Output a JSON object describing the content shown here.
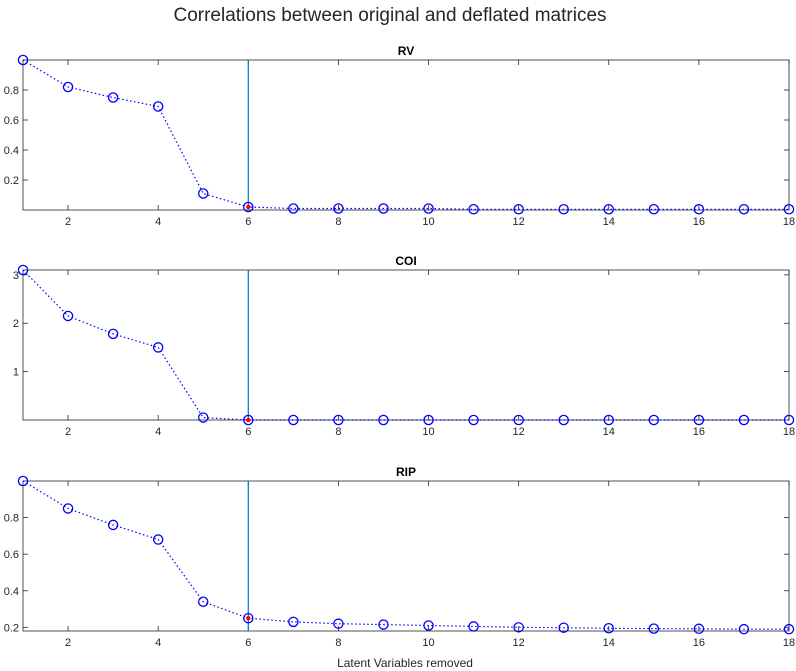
{
  "figure": {
    "title": "Correlations between original and deflated matrices",
    "xlabel": "Latent Variables removed"
  },
  "colors": {
    "marker": "#0000ff",
    "vline": "#0072bd",
    "highlight": "#ff0000",
    "axes": "#262626"
  },
  "chart_data": [
    {
      "type": "line",
      "title": "RV",
      "x": [
        1,
        2,
        3,
        4,
        5,
        6,
        7,
        8,
        9,
        10,
        11,
        12,
        13,
        14,
        15,
        16,
        17,
        18
      ],
      "series": [
        {
          "values": [
            1.0,
            0.82,
            0.75,
            0.69,
            0.11,
            0.02,
            0.01,
            0.01,
            0.01,
            0.01,
            0.005,
            0.005,
            0.005,
            0.005,
            0.005,
            0.005,
            0.005,
            0.005
          ]
        }
      ],
      "xlim": [
        1,
        18
      ],
      "ylim": [
        0,
        1.0
      ],
      "xticks": [
        2,
        4,
        6,
        8,
        10,
        12,
        14,
        16,
        18
      ],
      "yticks": [
        0.2,
        0.4,
        0.6,
        0.8
      ],
      "vline_x": 6,
      "highlight_x": 6,
      "line_style": "dotted",
      "marker": "circle"
    },
    {
      "type": "line",
      "title": "COI",
      "x": [
        1,
        2,
        3,
        4,
        5,
        6,
        7,
        8,
        9,
        10,
        11,
        12,
        13,
        14,
        15,
        16,
        17,
        18
      ],
      "series": [
        {
          "values": [
            3.1,
            2.15,
            1.78,
            1.5,
            0.05,
            0.0,
            0.0,
            0.0,
            0.0,
            0.0,
            0.0,
            0.0,
            0.0,
            0.0,
            0.0,
            0.0,
            0.0,
            0.0
          ]
        }
      ],
      "xlim": [
        1,
        18
      ],
      "ylim": [
        0,
        3.1
      ],
      "xticks": [
        2,
        4,
        6,
        8,
        10,
        12,
        14,
        16,
        18
      ],
      "yticks": [
        1,
        2,
        3
      ],
      "vline_x": 6,
      "highlight_x": 6,
      "line_style": "dotted",
      "marker": "circle"
    },
    {
      "type": "line",
      "title": "RIP",
      "x": [
        1,
        2,
        3,
        4,
        5,
        6,
        7,
        8,
        9,
        10,
        11,
        12,
        13,
        14,
        15,
        16,
        17,
        18
      ],
      "series": [
        {
          "values": [
            1.0,
            0.85,
            0.76,
            0.68,
            0.34,
            0.25,
            0.23,
            0.22,
            0.215,
            0.21,
            0.205,
            0.2,
            0.198,
            0.195,
            0.193,
            0.192,
            0.19,
            0.19
          ]
        }
      ],
      "xlim": [
        1,
        18
      ],
      "ylim": [
        0.18,
        1.0
      ],
      "xticks": [
        2,
        4,
        6,
        8,
        10,
        12,
        14,
        16,
        18
      ],
      "yticks": [
        0.2,
        0.4,
        0.6,
        0.8
      ],
      "vline_x": 6,
      "highlight_x": 6,
      "line_style": "dotted",
      "marker": "circle"
    }
  ]
}
